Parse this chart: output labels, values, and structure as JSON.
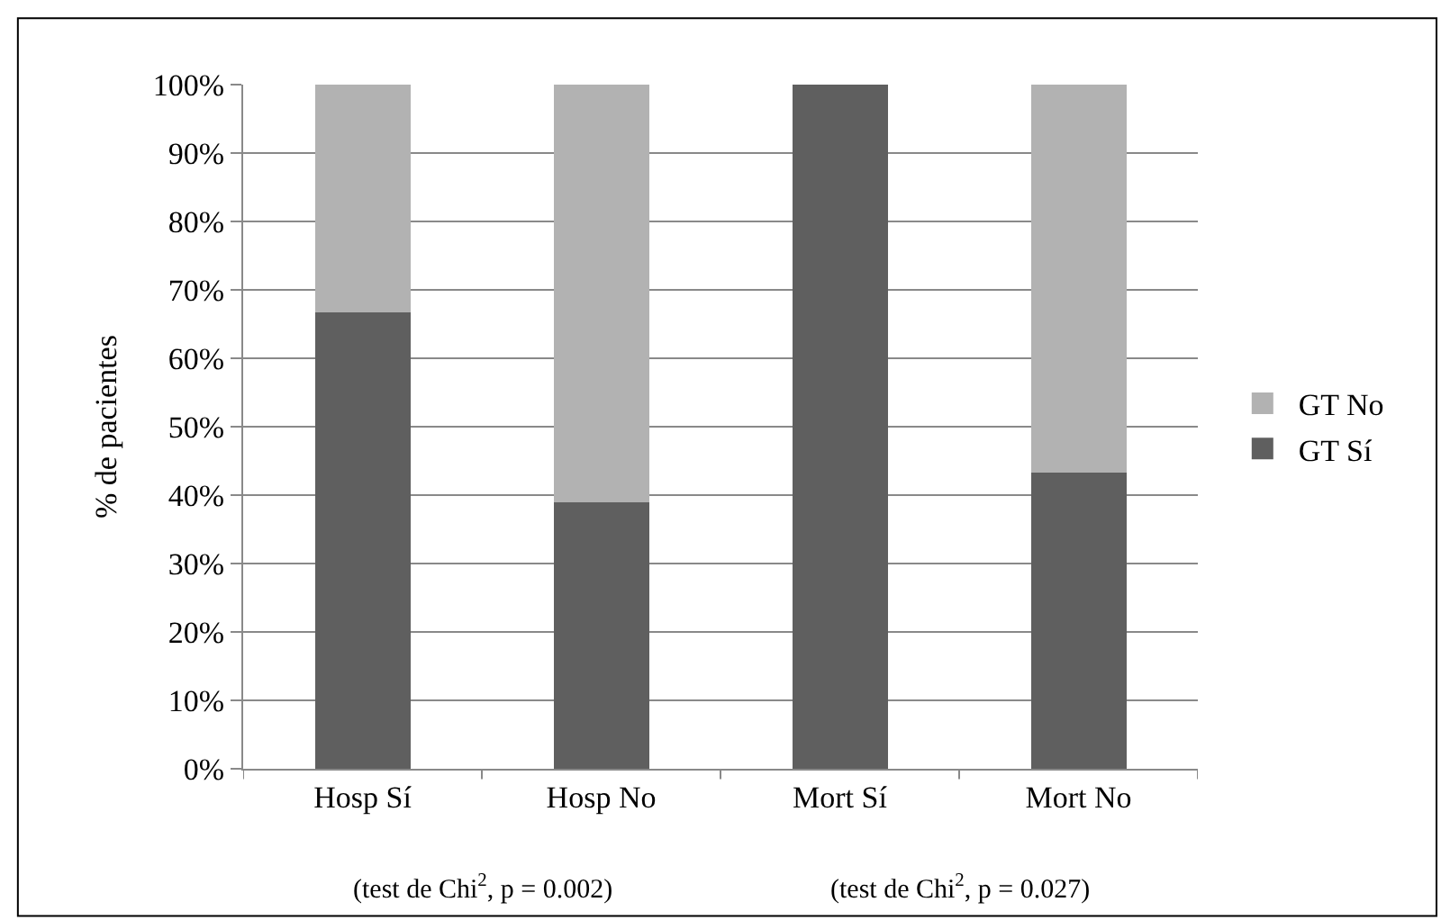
{
  "chart_data": {
    "type": "bar",
    "stacked": true,
    "ylabel": "% de pacientes",
    "categories": [
      "Hosp Sí",
      "Hosp No",
      "Mort Sí",
      "Mort No"
    ],
    "series": [
      {
        "name": "GT Sí",
        "color": "#5f5f5f",
        "values": [
          66.7,
          39,
          100,
          43.3
        ]
      },
      {
        "name": "GT No",
        "color": "#b2b2b2",
        "values": [
          33.3,
          61,
          0,
          56.7
        ]
      }
    ],
    "ylim": [
      0,
      100
    ],
    "yticks": [
      {
        "value": 0,
        "label": "0%"
      },
      {
        "value": 10,
        "label": "10%"
      },
      {
        "value": 20,
        "label": "20%"
      },
      {
        "value": 30,
        "label": "30%"
      },
      {
        "value": 40,
        "label": "40%"
      },
      {
        "value": 50,
        "label": "50%"
      },
      {
        "value": 60,
        "label": "60%"
      },
      {
        "value": 70,
        "label": "70%"
      },
      {
        "value": 80,
        "label": "80%"
      },
      {
        "value": 90,
        "label": "90%"
      },
      {
        "value": 100,
        "label": "100%"
      }
    ],
    "grid": "y",
    "legend": "right",
    "annotations": [
      "(test de Chi$^{2}$, p = 0.002)",
      "(test de Chi$^{2}$, p = 0.027)"
    ]
  }
}
